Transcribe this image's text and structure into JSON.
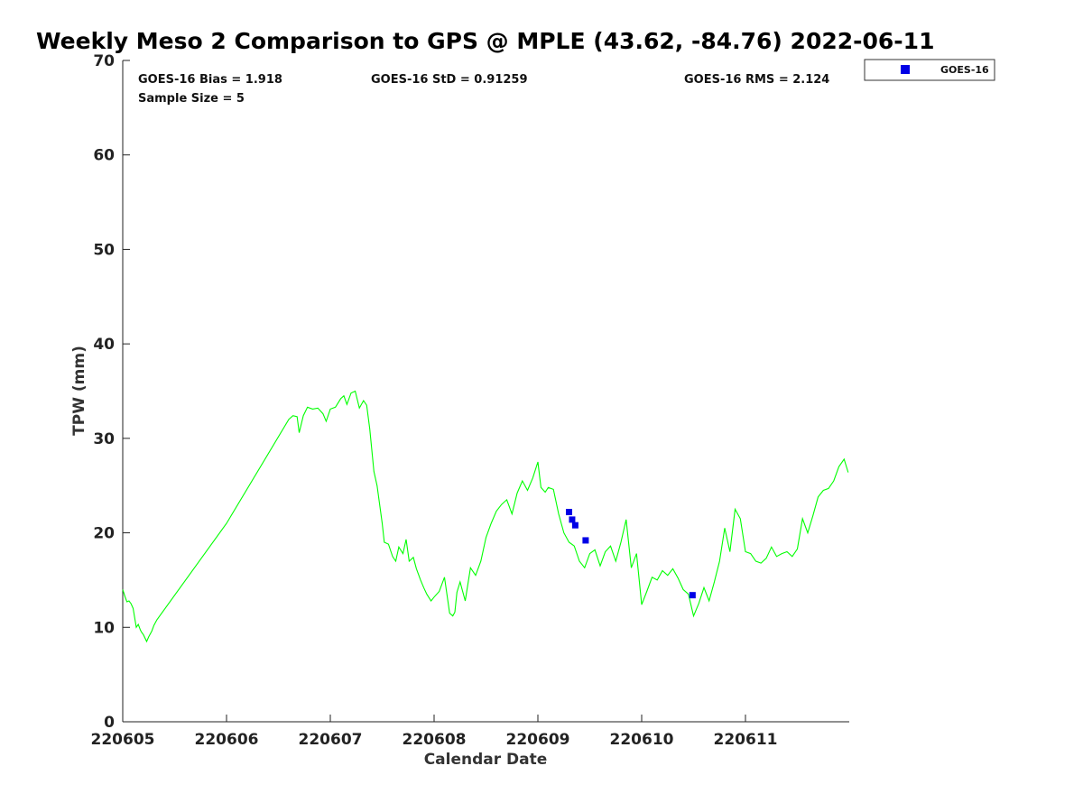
{
  "chart_data": {
    "type": "line",
    "title": "Weekly Meso 2 Comparison to GPS @ MPLE (43.62, -84.76) 2022-06-11",
    "xlabel": "Calendar Date",
    "ylabel": "TPW (mm)",
    "xlim": [
      220605.0,
      220612.0
    ],
    "ylim": [
      0,
      70
    ],
    "x_ticks": [
      {
        "value": 220605,
        "label": "220605"
      },
      {
        "value": 220606,
        "label": "220606"
      },
      {
        "value": 220607,
        "label": "220607"
      },
      {
        "value": 220608,
        "label": "220608"
      },
      {
        "value": 220609,
        "label": "220609"
      },
      {
        "value": 220610,
        "label": "220610"
      },
      {
        "value": 220611,
        "label": "220611"
      }
    ],
    "y_ticks": [
      0,
      10,
      20,
      30,
      40,
      50,
      60,
      70
    ],
    "grid": false,
    "legend": {
      "position": "outside-top-right",
      "entries": [
        "GOES-16"
      ]
    },
    "stats": {
      "bias": "GOES-16 Bias = 1.918",
      "std": "GOES-16 StD = 0.91259",
      "rms": "GOES-16 RMS = 2.124",
      "sample": "Sample Size = 5"
    },
    "series": [
      {
        "kind": "line",
        "color": "#00ff00",
        "x": [
          220605.0,
          220605.02,
          220605.04,
          220605.06,
          220605.08,
          220605.1,
          220605.13,
          220605.15,
          220605.17,
          220605.18,
          220605.2,
          220605.23,
          220605.25,
          220605.28,
          220605.3,
          220605.33,
          220606.0,
          220606.6,
          220606.64,
          220606.68,
          220606.7,
          220606.74,
          220606.78,
          220606.83,
          220606.88,
          220606.93,
          220606.96,
          220607.0,
          220607.05,
          220607.1,
          220607.13,
          220607.16,
          220607.2,
          220607.24,
          220607.28,
          220607.32,
          220607.35,
          220607.38,
          220607.42,
          220607.45,
          220607.5,
          220607.52,
          220607.56,
          220607.6,
          220607.63,
          220607.66,
          220607.7,
          220607.73,
          220607.76,
          220607.8,
          220607.83,
          220607.87,
          220607.9,
          220607.93,
          220607.97,
          220608.0,
          220608.05,
          220608.1,
          220608.15,
          220608.18,
          220608.2,
          220608.22,
          220608.25,
          220608.3,
          220608.35,
          220608.4,
          220608.45,
          220608.5,
          220608.55,
          220608.6,
          220608.65,
          220608.7,
          220608.75,
          220608.8,
          220608.85,
          220608.9,
          220608.95,
          220609.0,
          220609.03,
          220609.07,
          220609.1,
          220609.15,
          220609.2,
          220609.25,
          220609.3,
          220609.35,
          220609.4,
          220609.45,
          220609.5,
          220609.55,
          220609.6,
          220609.65,
          220609.7,
          220609.75,
          220609.8,
          220609.85,
          220609.9,
          220609.95,
          220610.0,
          220610.05,
          220610.1,
          220610.15,
          220610.2,
          220610.25,
          220610.3,
          220610.35,
          220610.4,
          220610.45,
          220610.5,
          220610.55,
          220610.6,
          220610.65,
          220610.7,
          220610.75,
          220610.8,
          220610.85,
          220610.9,
          220610.95,
          220611.0,
          220611.05,
          220611.1,
          220611.15,
          220611.2,
          220611.25,
          220611.3,
          220611.35,
          220611.4,
          220611.45,
          220611.5,
          220611.55,
          220611.6,
          220611.65,
          220611.7,
          220611.75,
          220611.8,
          220611.85,
          220611.9,
          220611.95,
          220611.99
        ],
        "y": [
          14.0,
          13.3,
          12.7,
          12.8,
          12.5,
          12.0,
          10.0,
          10.3,
          9.7,
          9.5,
          9.2,
          8.5,
          9.0,
          9.6,
          10.2,
          10.8,
          21.0,
          32.0,
          32.4,
          32.3,
          30.6,
          32.4,
          33.3,
          33.1,
          33.2,
          32.6,
          31.8,
          33.1,
          33.3,
          34.2,
          34.5,
          33.6,
          34.8,
          35.0,
          33.2,
          34.0,
          33.5,
          31.0,
          26.5,
          25.0,
          21.0,
          19.0,
          18.8,
          17.5,
          17.0,
          18.5,
          17.8,
          19.3,
          17.0,
          17.4,
          16.2,
          15.0,
          14.2,
          13.5,
          12.8,
          13.2,
          13.8,
          15.3,
          11.5,
          11.2,
          11.6,
          13.7,
          14.8,
          12.8,
          16.3,
          15.5,
          17.0,
          19.5,
          21.0,
          22.3,
          23.0,
          23.5,
          22.0,
          24.2,
          25.5,
          24.5,
          25.8,
          27.5,
          24.8,
          24.3,
          24.8,
          24.6,
          22.0,
          20.0,
          19.0,
          18.6,
          17.0,
          16.3,
          17.8,
          18.2,
          16.5,
          18.0,
          18.6,
          17.0,
          19.0,
          21.4,
          16.3,
          17.8,
          12.4,
          13.8,
          15.3,
          15.0,
          16.0,
          15.5,
          16.2,
          15.2,
          14.0,
          13.5,
          11.2,
          12.5,
          14.2,
          12.8,
          14.8,
          17.0,
          20.5,
          18.0,
          22.5,
          21.5,
          18.0,
          17.8,
          17.0,
          16.8,
          17.3,
          18.5,
          17.5,
          17.8,
          18.0,
          17.5,
          18.3,
          21.5,
          20.0,
          21.8,
          23.8,
          24.5,
          24.7,
          25.5,
          27.0,
          27.8,
          26.4
        ]
      },
      {
        "name": "GOES-16",
        "kind": "scatter",
        "marker": "square",
        "color": "#0000e6",
        "x": [
          220609.3,
          220609.33,
          220609.36,
          220609.46,
          220610.49
        ],
        "y": [
          22.2,
          21.4,
          20.8,
          19.2,
          13.4
        ]
      }
    ]
  }
}
